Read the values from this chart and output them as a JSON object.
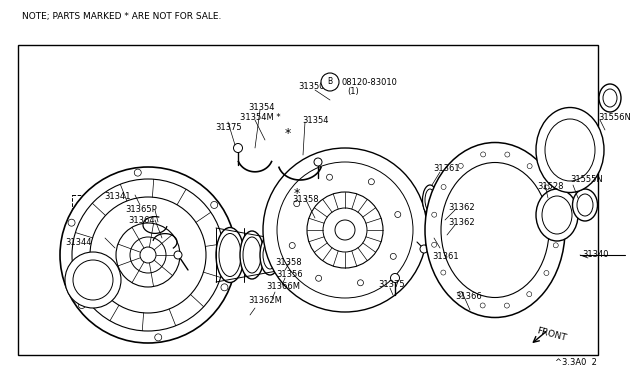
{
  "bg": "#ffffff",
  "lc": "#000000",
  "tc": "#000000",
  "note": "NOTE; PARTS MARKED * ARE NOT FOR SALE.",
  "footer": "^3.3A0  2",
  "front": "FRONT",
  "b_label": "B",
  "b_part": "08120-83010",
  "b_qty": "(1)"
}
